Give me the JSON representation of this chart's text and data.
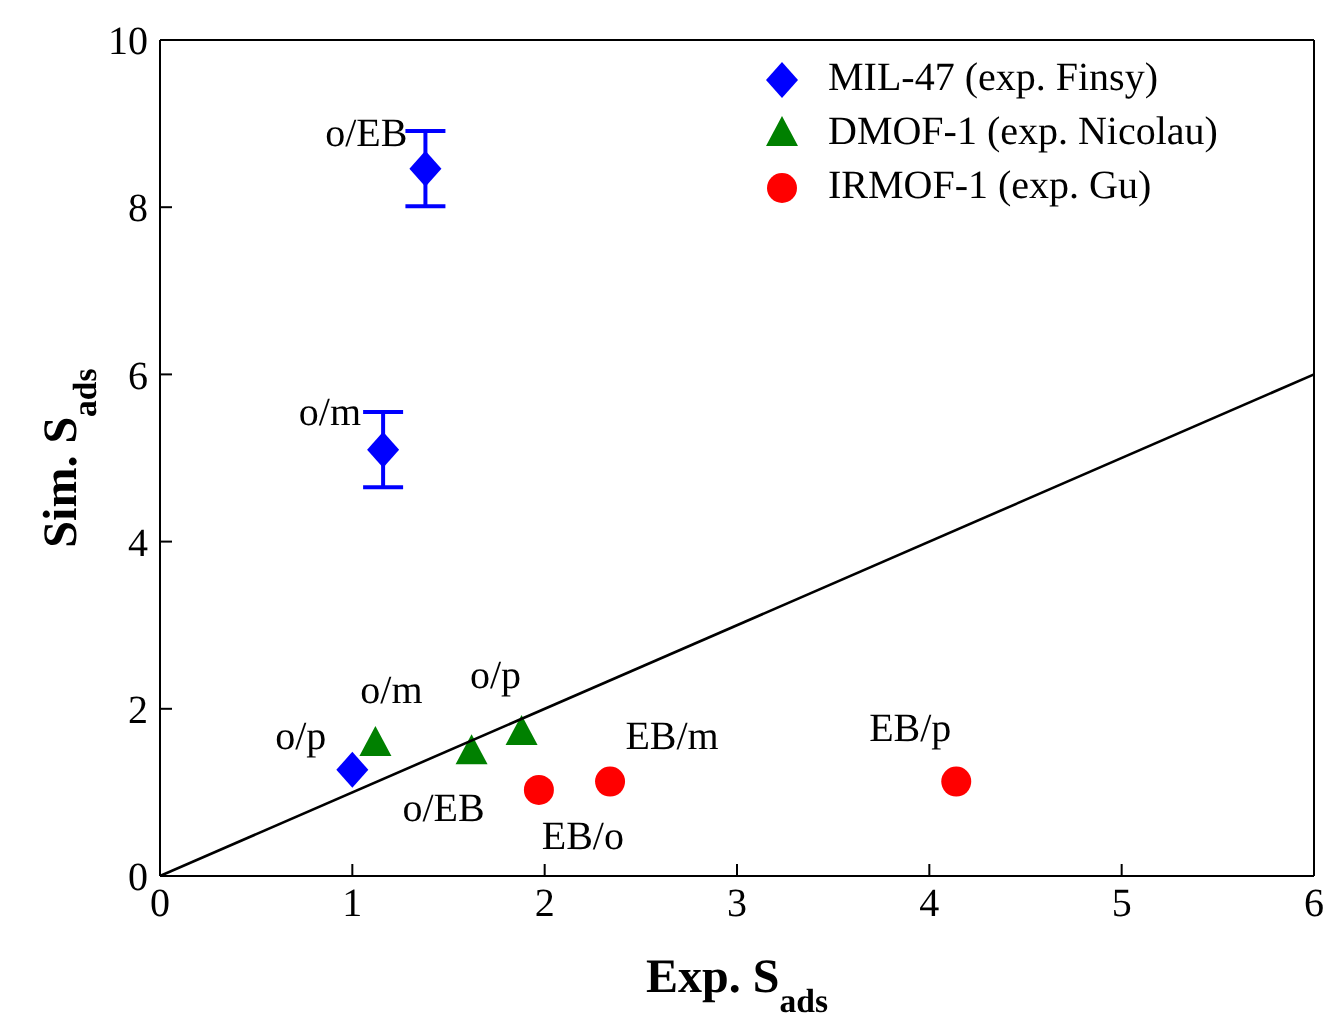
{
  "chart_data": {
    "type": "scatter",
    "xlabel": "Exp. S$_{ads}$",
    "ylabel": "Sim. S$_{ads}$",
    "xlim": [
      0,
      6
    ],
    "xticks": [
      0,
      1,
      2,
      3,
      4,
      5,
      6
    ],
    "ylim": [
      0,
      10
    ],
    "yticks": [
      0,
      2,
      4,
      6,
      8,
      10
    ],
    "legend": "top right",
    "series": [
      {
        "name": "MIL-47 (exp. Finsy)",
        "color": "#0000ff",
        "marker": "diamond",
        "x": [
          1.0,
          1.16,
          1.38
        ],
        "values": [
          1.27,
          5.1,
          8.46
        ],
        "errors": [
          null,
          0.45,
          0.45
        ]
      },
      {
        "name": "DMOF-1 (exp. Nicolau)",
        "color": "#008000",
        "marker": "triangle",
        "x": [
          1.12,
          1.62,
          1.88
        ],
        "values": [
          1.58,
          1.48,
          1.71
        ]
      },
      {
        "name": "IRMOF-1 (exp. Gu)",
        "color": "#ff0000",
        "marker": "circle",
        "x": [
          1.97,
          2.34,
          4.14
        ],
        "values": [
          1.03,
          1.13,
          1.13
        ]
      },
      {
        "type": "line",
        "color": "#000000",
        "marker": "none",
        "x": [
          0,
          6
        ],
        "values": [
          0,
          6
        ]
      }
    ],
    "annotations": [
      {
        "text": "o/p",
        "x": 1.0,
        "y": 1.27
      },
      {
        "text": "o/m",
        "x": 1.16,
        "y": 5.1
      },
      {
        "text": "o/EB",
        "x": 1.38,
        "y": 8.46
      },
      {
        "text": "o/m",
        "x": 1.12,
        "y": 1.58
      },
      {
        "text": "o/EB",
        "x": 1.62,
        "y": 1.48
      },
      {
        "text": "o/p",
        "x": 1.88,
        "y": 1.71
      },
      {
        "text": "EB/o",
        "x": 1.97,
        "y": 1.03
      },
      {
        "text": "EB/m",
        "x": 2.34,
        "y": 1.13
      },
      {
        "text": "EB/p",
        "x": 4.14,
        "y": 1.13
      }
    ]
  }
}
